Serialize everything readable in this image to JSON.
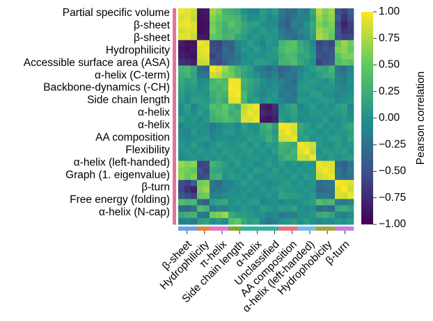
{
  "chart_data": {
    "type": "heatmap",
    "title": "",
    "xlabel": "",
    "ylabel": "",
    "y_tick_labels": [
      "Partial specific volume",
      "β-sheet",
      "β-sheet",
      "Hydrophilicity",
      "Accessible surface area (ASA)",
      "α-helix (C-term)",
      "Backbone-dynamics (-CH)",
      "Side chain length",
      "α-helix",
      "α-helix",
      "AA composition",
      "Flexibility",
      "α-helix (left-handed)",
      "Graph (1. eigenvalue)",
      "β-turn",
      "Free energy (folding)",
      "α-helix (N-cap)"
    ],
    "x_tick_labels": [
      "β-sheet",
      "Hydrophilicity",
      "π-helix",
      "Side chain length",
      "α-helix",
      "Unclassified",
      "AA composition",
      "α-helix (left-handed)",
      "Hydrophobicity",
      "β-turn"
    ],
    "row_group_colors": [
      "#e8709b",
      "#e8709b",
      "#e8709b",
      "#e8709b",
      "#e8709b",
      "#e8709b",
      "#e8709b",
      "#e8709b",
      "#e8709b",
      "#e8709b",
      "#e8709b",
      "#e8709b",
      "#e8709b",
      "#e8709b",
      "#e8709b",
      "#e8709b",
      "#e8709b",
      "#e8709b",
      "#e8709b",
      "#e8709b",
      "#e8709b",
      "#e8709b",
      "#e8709b",
      "#e8709b",
      "#e8709b",
      "#e8709b",
      "#e8709b",
      "#e8709b",
      "#e8709b",
      "#e8709b",
      "#e8709b",
      "#e8709b",
      "#e8709b",
      "#e8709b"
    ],
    "column_group_colors": [
      "#6d9eeb",
      "#6d9eeb",
      "#6d9eeb",
      "#df8a2c",
      "#df8a2c",
      "#e673cc",
      "#e673cc",
      "#e673cc",
      "#7aa632",
      "#7aa632",
      "#2fb3a3",
      "#2fb3a3",
      "#2fb3a3",
      "#2fb3a3",
      "#2fb3a3",
      "#2fb3a3",
      "#e8707a",
      "#e8707a",
      "#e8707a",
      "#6fbde8",
      "#6fbde8",
      "#6fbde8",
      "#a9a33b",
      "#a9a33b",
      "#a9a33b",
      "#c77de8",
      "#c77de8",
      "#c77de8"
    ],
    "colormap": [
      "#440154",
      "#3b528b",
      "#21918c",
      "#5ec962",
      "#fde725"
    ],
    "colorbar": {
      "label": "Pearson correlation",
      "min": -1.0,
      "max": 1.0,
      "ticks": [
        1.0,
        0.75,
        0.5,
        0.25,
        0.0,
        -0.25,
        -0.5,
        -0.75,
        -1.0
      ],
      "tick_labels": [
        "1.00",
        "0.75",
        "0.50",
        "0.25",
        "0.00",
        "−0.25",
        "−0.50",
        "−0.75",
        "−1.00"
      ]
    },
    "values": [
      [
        0.95,
        0.92,
        0.85,
        -0.9,
        -0.85,
        0.7,
        0.6,
        0.3,
        0.25,
        0.2,
        0.0,
        -0.1,
        -0.1,
        0.1,
        0.0,
        0.1,
        -0.2,
        -0.3,
        -0.3,
        -0.1,
        -0.2,
        0.2,
        0.8,
        0.6,
        0.7,
        -0.5,
        -0.6,
        -0.4
      ],
      [
        0.88,
        0.93,
        0.8,
        -0.92,
        -0.88,
        0.62,
        0.5,
        0.4,
        0.35,
        0.3,
        0.1,
        -0.05,
        0.0,
        0.05,
        -0.1,
        0.0,
        -0.25,
        -0.35,
        -0.2,
        -0.15,
        -0.1,
        0.1,
        0.7,
        0.55,
        0.65,
        -0.4,
        -0.7,
        -0.5
      ],
      [
        0.93,
        0.96,
        0.9,
        -0.94,
        -0.9,
        0.55,
        0.42,
        0.3,
        0.45,
        0.32,
        0.2,
        0.1,
        0.12,
        0.0,
        -0.05,
        -0.05,
        -0.3,
        -0.4,
        -0.1,
        -0.2,
        0.0,
        0.2,
        0.62,
        0.5,
        0.6,
        -0.55,
        -0.8,
        -0.6
      ],
      [
        0.85,
        0.9,
        0.88,
        -0.95,
        -0.9,
        0.6,
        0.45,
        0.25,
        0.3,
        0.35,
        0.15,
        0.05,
        0.0,
        0.1,
        0.0,
        0.05,
        -0.2,
        -0.3,
        -0.25,
        -0.1,
        -0.05,
        0.15,
        0.7,
        0.6,
        0.55,
        -0.45,
        -0.7,
        -0.65
      ],
      [
        0.9,
        0.92,
        0.82,
        -0.85,
        -0.88,
        0.5,
        0.45,
        0.3,
        0.35,
        0.2,
        0.1,
        0.0,
        0.05,
        0.0,
        0.05,
        0.0,
        -0.15,
        -0.25,
        -0.3,
        -0.2,
        -0.1,
        0.1,
        0.75,
        0.65,
        0.5,
        -0.5,
        -0.6,
        -0.55
      ],
      [
        -0.82,
        -0.9,
        -0.88,
        0.94,
        0.9,
        -0.55,
        -0.6,
        -0.4,
        -0.35,
        -0.1,
        0.0,
        0.1,
        0.0,
        -0.1,
        0.05,
        0.0,
        0.3,
        0.4,
        0.45,
        0.2,
        0.1,
        -0.1,
        -0.6,
        -0.5,
        -0.6,
        0.5,
        0.7,
        0.55
      ],
      [
        -0.86,
        -0.92,
        -0.85,
        0.9,
        0.95,
        -0.5,
        -0.55,
        -0.3,
        -0.4,
        -0.15,
        0.05,
        0.0,
        0.1,
        -0.05,
        0.0,
        0.1,
        0.35,
        0.45,
        0.4,
        0.25,
        0.15,
        0.0,
        -0.55,
        -0.45,
        -0.5,
        0.6,
        0.65,
        0.5
      ],
      [
        -0.8,
        -0.85,
        -0.9,
        0.88,
        0.9,
        -0.6,
        -0.5,
        -0.35,
        -0.3,
        -0.2,
        -0.05,
        0.05,
        0.0,
        0.0,
        0.05,
        0.05,
        0.25,
        0.35,
        0.35,
        0.15,
        0.2,
        0.05,
        -0.5,
        -0.55,
        -0.45,
        0.45,
        0.6,
        0.6
      ],
      [
        -0.7,
        -0.75,
        -0.8,
        0.82,
        0.85,
        -0.45,
        -0.55,
        -0.4,
        -0.25,
        -0.15,
        0.0,
        0.0,
        0.1,
        0.1,
        0.05,
        0.0,
        0.3,
        0.3,
        0.4,
        0.2,
        0.1,
        0.0,
        -0.6,
        -0.5,
        -0.4,
        0.4,
        0.5,
        0.45
      ],
      [
        0.3,
        0.35,
        0.2,
        -0.3,
        -0.35,
        0.98,
        0.9,
        0.7,
        0.5,
        0.3,
        0.2,
        0.1,
        -0.1,
        -0.2,
        -0.3,
        -0.2,
        -0.4,
        -0.3,
        -0.2,
        -0.1,
        0.0,
        0.1,
        0.2,
        0.15,
        0.3,
        -0.2,
        -0.3,
        -0.1
      ],
      [
        0.25,
        0.3,
        0.15,
        -0.2,
        -0.25,
        0.85,
        0.8,
        0.6,
        0.55,
        0.35,
        0.15,
        0.05,
        0.0,
        -0.15,
        -0.2,
        -0.1,
        -0.3,
        -0.2,
        -0.25,
        -0.05,
        0.05,
        0.0,
        0.1,
        0.2,
        0.25,
        -0.15,
        -0.2,
        -0.05
      ],
      [
        0.2,
        0.1,
        0.15,
        -0.05,
        0.0,
        0.3,
        0.4,
        0.35,
        0.97,
        0.95,
        0.3,
        0.2,
        0.1,
        0.0,
        -0.1,
        -0.05,
        -0.1,
        -0.2,
        -0.3,
        0.0,
        0.05,
        0.1,
        0.05,
        0.0,
        0.1,
        -0.1,
        -0.15,
        0.0
      ],
      [
        0.15,
        0.05,
        0.1,
        0.0,
        0.05,
        0.35,
        0.3,
        0.4,
        0.98,
        0.96,
        0.25,
        0.15,
        0.05,
        -0.05,
        -0.05,
        0.0,
        -0.15,
        -0.25,
        -0.2,
        0.05,
        0.1,
        0.05,
        0.0,
        0.05,
        0.05,
        -0.05,
        -0.1,
        -0.05
      ],
      [
        0.1,
        0.0,
        0.05,
        0.05,
        0.0,
        0.25,
        0.35,
        0.3,
        0.95,
        0.99,
        0.35,
        0.1,
        0.0,
        -0.1,
        0.0,
        0.05,
        -0.2,
        -0.15,
        -0.25,
        0.0,
        0.0,
        0.1,
        0.1,
        0.0,
        0.0,
        -0.1,
        -0.05,
        0.0
      ],
      [
        0.05,
        -0.05,
        0.1,
        0.1,
        0.05,
        0.2,
        0.3,
        0.2,
        0.9,
        0.92,
        0.3,
        0.05,
        0.1,
        -0.05,
        0.05,
        0.0,
        -0.1,
        -0.2,
        -0.2,
        0.05,
        0.05,
        0.0,
        0.05,
        0.1,
        0.05,
        -0.05,
        0.0,
        0.05
      ],
      [
        0.0,
        0.1,
        -0.1,
        0.05,
        0.1,
        0.4,
        0.35,
        0.5,
        0.3,
        0.2,
        0.8,
        0.9,
        0.95,
        -0.8,
        -0.85,
        -0.7,
        0.0,
        0.1,
        0.2,
        -0.1,
        0.0,
        0.1,
        0.0,
        0.05,
        0.0,
        0.1,
        0.15,
        -0.1
      ],
      [
        -0.05,
        0.05,
        -0.05,
        0.1,
        0.0,
        0.3,
        0.4,
        0.45,
        0.25,
        0.3,
        0.85,
        0.95,
        0.9,
        -0.75,
        -0.8,
        -0.75,
        0.05,
        0.05,
        0.15,
        0.0,
        -0.05,
        0.05,
        0.05,
        0.0,
        0.05,
        0.05,
        0.1,
        -0.05
      ],
      [
        0.1,
        0.0,
        0.05,
        -0.05,
        0.05,
        0.25,
        0.3,
        0.4,
        0.35,
        0.25,
        0.9,
        0.88,
        0.96,
        -0.85,
        -0.9,
        -0.8,
        0.1,
        0.0,
        0.1,
        -0.05,
        0.0,
        0.0,
        0.0,
        0.1,
        -0.05,
        0.0,
        0.05,
        0.0
      ],
      [
        -0.1,
        0.0,
        0.0,
        0.0,
        -0.05,
        -0.2,
        -0.1,
        0.0,
        0.0,
        -0.1,
        0.1,
        0.0,
        0.0,
        0.2,
        0.3,
        0.1,
        0.98,
        0.95,
        0.9,
        0.2,
        0.1,
        0.0,
        0.1,
        0.0,
        0.05,
        0.0,
        0.1,
        0.2
      ],
      [
        -0.05,
        -0.1,
        0.05,
        -0.05,
        0.0,
        -0.15,
        -0.05,
        0.05,
        0.05,
        -0.05,
        0.05,
        0.05,
        0.0,
        0.15,
        0.2,
        0.05,
        0.9,
        0.97,
        0.85,
        0.15,
        0.05,
        0.05,
        0.0,
        0.05,
        0.0,
        0.05,
        0.05,
        0.1
      ],
      [
        0.0,
        -0.05,
        0.0,
        0.05,
        0.05,
        -0.1,
        0.0,
        0.0,
        -0.05,
        0.0,
        0.0,
        0.1,
        0.05,
        0.1,
        0.25,
        0.1,
        0.85,
        0.88,
        0.95,
        0.1,
        0.15,
        0.0,
        0.05,
        0.0,
        0.1,
        0.1,
        0.0,
        0.15
      ],
      [
        0.05,
        0.0,
        0.1,
        0.0,
        -0.1,
        0.0,
        0.1,
        0.05,
        0.0,
        0.05,
        0.1,
        0.0,
        0.1,
        0.0,
        0.1,
        0.05,
        0.3,
        0.25,
        0.2,
        0.97,
        0.9,
        0.85,
        0.05,
        0.0,
        0.0,
        0.1,
        0.0,
        0.05
      ],
      [
        0.0,
        0.05,
        0.0,
        0.05,
        0.0,
        0.05,
        0.0,
        0.1,
        0.05,
        0.0,
        0.05,
        0.1,
        0.0,
        0.05,
        0.0,
        0.1,
        0.25,
        0.2,
        0.3,
        0.9,
        0.98,
        0.8,
        0.0,
        0.1,
        0.05,
        0.05,
        0.1,
        0.0
      ],
      [
        -0.05,
        0.0,
        0.05,
        0.0,
        0.05,
        0.0,
        0.05,
        0.0,
        0.1,
        0.05,
        0.0,
        0.05,
        0.05,
        0.0,
        0.05,
        0.0,
        0.2,
        0.3,
        0.25,
        0.85,
        0.82,
        0.96,
        0.05,
        0.0,
        0.1,
        0.0,
        0.05,
        0.1
      ],
      [
        0.7,
        0.6,
        0.65,
        -0.6,
        -0.55,
        0.3,
        0.2,
        0.1,
        0.0,
        0.1,
        0.0,
        0.05,
        -0.05,
        0.0,
        0.1,
        0.0,
        0.1,
        0.0,
        0.05,
        0.0,
        0.05,
        0.0,
        0.95,
        0.9,
        0.92,
        -0.3,
        -0.4,
        -0.2
      ],
      [
        0.6,
        0.55,
        0.5,
        -0.5,
        -0.6,
        0.2,
        0.15,
        0.05,
        0.05,
        0.0,
        0.05,
        0.0,
        0.1,
        0.05,
        0.0,
        0.1,
        0.0,
        0.05,
        0.0,
        0.05,
        0.0,
        0.05,
        0.9,
        0.97,
        0.88,
        -0.25,
        -0.35,
        -0.15
      ],
      [
        0.65,
        0.5,
        0.6,
        -0.55,
        -0.5,
        0.25,
        0.3,
        0.0,
        0.1,
        0.05,
        0.0,
        0.1,
        0.0,
        0.0,
        0.05,
        0.05,
        0.05,
        0.0,
        0.1,
        0.0,
        0.1,
        0.05,
        0.85,
        0.9,
        0.95,
        -0.2,
        -0.3,
        -0.25
      ],
      [
        -0.5,
        -0.6,
        -0.4,
        0.55,
        0.6,
        -0.2,
        -0.3,
        -0.1,
        -0.1,
        0.0,
        0.1,
        0.0,
        0.05,
        0.0,
        -0.05,
        0.0,
        0.05,
        0.1,
        0.0,
        0.05,
        0.0,
        0.05,
        -0.3,
        -0.25,
        -0.2,
        0.97,
        0.95,
        0.9
      ],
      [
        -0.55,
        -0.7,
        -0.8,
        0.6,
        0.7,
        -0.25,
        -0.2,
        -0.15,
        -0.05,
        -0.05,
        0.0,
        0.05,
        0.0,
        0.05,
        0.0,
        0.05,
        0.1,
        0.05,
        0.05,
        0.0,
        0.05,
        0.0,
        -0.35,
        -0.3,
        -0.25,
        0.9,
        0.99,
        0.85
      ],
      [
        -0.45,
        -0.55,
        -0.6,
        0.5,
        0.55,
        -0.1,
        -0.1,
        -0.05,
        0.0,
        0.0,
        0.05,
        -0.05,
        0.0,
        -0.05,
        0.05,
        0.0,
        0.15,
        0.1,
        0.1,
        0.05,
        0.0,
        0.05,
        -0.2,
        -0.15,
        -0.25,
        0.88,
        0.85,
        0.96
      ],
      [
        0.4,
        0.3,
        0.35,
        -0.3,
        -0.4,
        0.1,
        0.15,
        0.2,
        0.0,
        0.05,
        0.0,
        0.05,
        0.1,
        -0.1,
        -0.05,
        0.0,
        -0.1,
        0.0,
        -0.05,
        0.0,
        0.05,
        0.1,
        0.4,
        0.3,
        0.35,
        -0.15,
        -0.2,
        -0.1
      ],
      [
        -0.3,
        -0.35,
        -0.25,
        0.4,
        0.3,
        -0.2,
        -0.1,
        -0.15,
        0.0,
        -0.05,
        0.05,
        0.0,
        -0.05,
        0.1,
        0.05,
        0.0,
        0.1,
        0.05,
        0.15,
        0.0,
        -0.05,
        0.0,
        -0.3,
        -0.25,
        -0.35,
        0.2,
        0.25,
        0.15
      ],
      [
        0.2,
        0.25,
        0.3,
        -0.2,
        -0.25,
        0.55,
        0.6,
        0.7,
        0.2,
        0.1,
        0.1,
        0.05,
        0.0,
        0.0,
        -0.1,
        -0.05,
        -0.2,
        -0.1,
        -0.15,
        0.0,
        0.0,
        0.05,
        0.2,
        0.25,
        0.15,
        -0.1,
        -0.15,
        -0.05
      ],
      [
        -0.15,
        -0.1,
        -0.2,
        0.1,
        0.15,
        0.0,
        0.05,
        -0.05,
        0.4,
        0.5,
        0.2,
        0.1,
        0.15,
        -0.1,
        -0.2,
        -0.1,
        0.0,
        0.05,
        0.1,
        0.0,
        0.1,
        0.0,
        -0.1,
        0.0,
        -0.05,
        0.05,
        0.0,
        0.1
      ]
    ]
  }
}
